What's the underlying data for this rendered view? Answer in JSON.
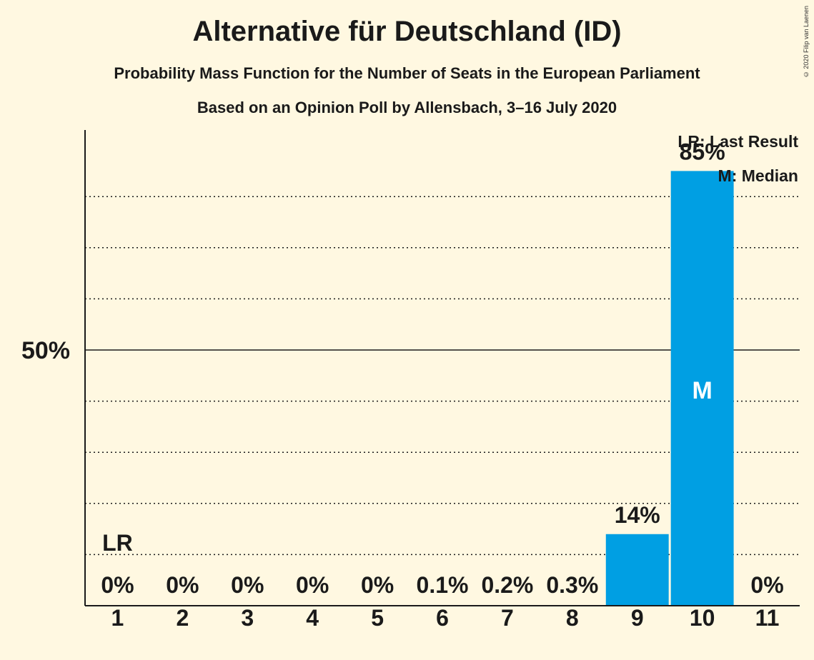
{
  "title": "Alternative für Deutschland (ID)",
  "subtitle": "Probability Mass Function for the Number of Seats in the European Parliament",
  "subtitle2": "Based on an Opinion Poll by Allensbach, 3–16 July 2020",
  "copyright": "© 2020 Filip van Laenen",
  "legend": {
    "last_result": "LR: Last Result",
    "median": "M: Median"
  },
  "colors": {
    "bar": "#009FE3",
    "background": "#FFF8E1",
    "text": "#1a1a1a"
  },
  "chart_data": {
    "type": "bar",
    "categories": [
      "1",
      "2",
      "3",
      "4",
      "5",
      "6",
      "7",
      "8",
      "9",
      "10",
      "11"
    ],
    "values": [
      0,
      0,
      0,
      0,
      0,
      0.1,
      0.2,
      0.3,
      14,
      85,
      0
    ],
    "value_labels": [
      "0%",
      "0%",
      "0%",
      "0%",
      "0%",
      "0.1%",
      "0.2%",
      "0.3%",
      "14%",
      "85%",
      "0%"
    ],
    "ylim": [
      0,
      93
    ],
    "ytick_label": "50%",
    "ytick_value": 50,
    "gridlines": [
      10,
      20,
      30,
      40,
      60,
      70,
      80
    ],
    "last_result_index": 0,
    "last_result_label": "LR",
    "median_index": 9,
    "median_label": "M"
  }
}
